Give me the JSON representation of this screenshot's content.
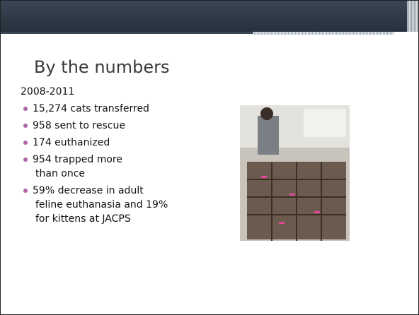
{
  "slide": {
    "title": "By the numbers",
    "subtitle": "2008-2011",
    "bullets": [
      {
        "lines": [
          "15,274 cats transferred"
        ]
      },
      {
        "lines": [
          "958 sent to rescue"
        ]
      },
      {
        "lines": [
          "174 euthanized"
        ]
      },
      {
        "lines": [
          "954 trapped more",
          "than once"
        ]
      },
      {
        "lines": [
          "59% decrease in adult",
          "feline euthanasia and 19%",
          "for kittens at JACPS"
        ]
      }
    ]
  }
}
